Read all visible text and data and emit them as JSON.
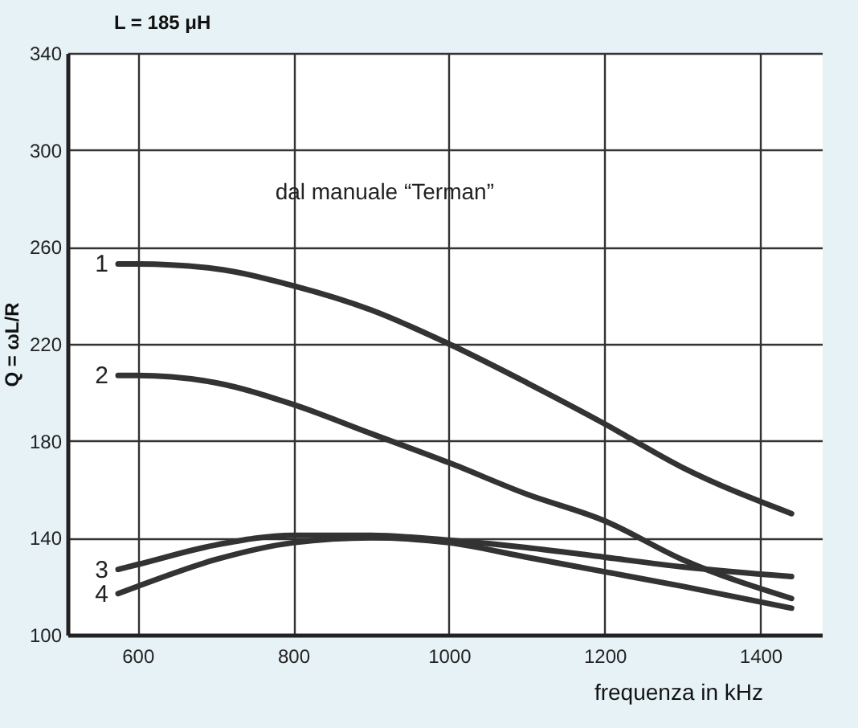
{
  "chart_data": {
    "type": "line",
    "title": "L = 185 μH",
    "xlabel": "frequenza in kHz",
    "ylabel": "Q = ωL/R",
    "annotations": [
      "dal manuale “Terman”"
    ],
    "x": [
      575,
      600,
      700,
      800,
      900,
      1000,
      1100,
      1200,
      1300,
      1440
    ],
    "series": [
      {
        "name": "1",
        "color": "#333333",
        "values": [
          253,
          253,
          251,
          244,
          234,
          220,
          204,
          187,
          169,
          150
        ]
      },
      {
        "name": "2",
        "color": "#333333",
        "values": [
          207,
          207,
          204,
          195,
          183,
          171,
          158,
          147,
          131,
          115
        ]
      },
      {
        "name": "3",
        "color": "#333333",
        "values": [
          127,
          129,
          137,
          141,
          141,
          139,
          136,
          132,
          128,
          124
        ]
      },
      {
        "name": "4",
        "color": "#333333",
        "values": [
          117,
          120,
          131,
          138,
          140,
          138,
          132,
          126,
          120,
          111
        ]
      }
    ],
    "xlim": [
      510,
      1480
    ],
    "ylim": [
      100,
      340
    ],
    "xticks": [
      600,
      800,
      1000,
      1200,
      1400
    ],
    "yticks": [
      100,
      140,
      180,
      220,
      260,
      300,
      340
    ],
    "grid": true,
    "line_style": "solid",
    "marker": "none"
  }
}
